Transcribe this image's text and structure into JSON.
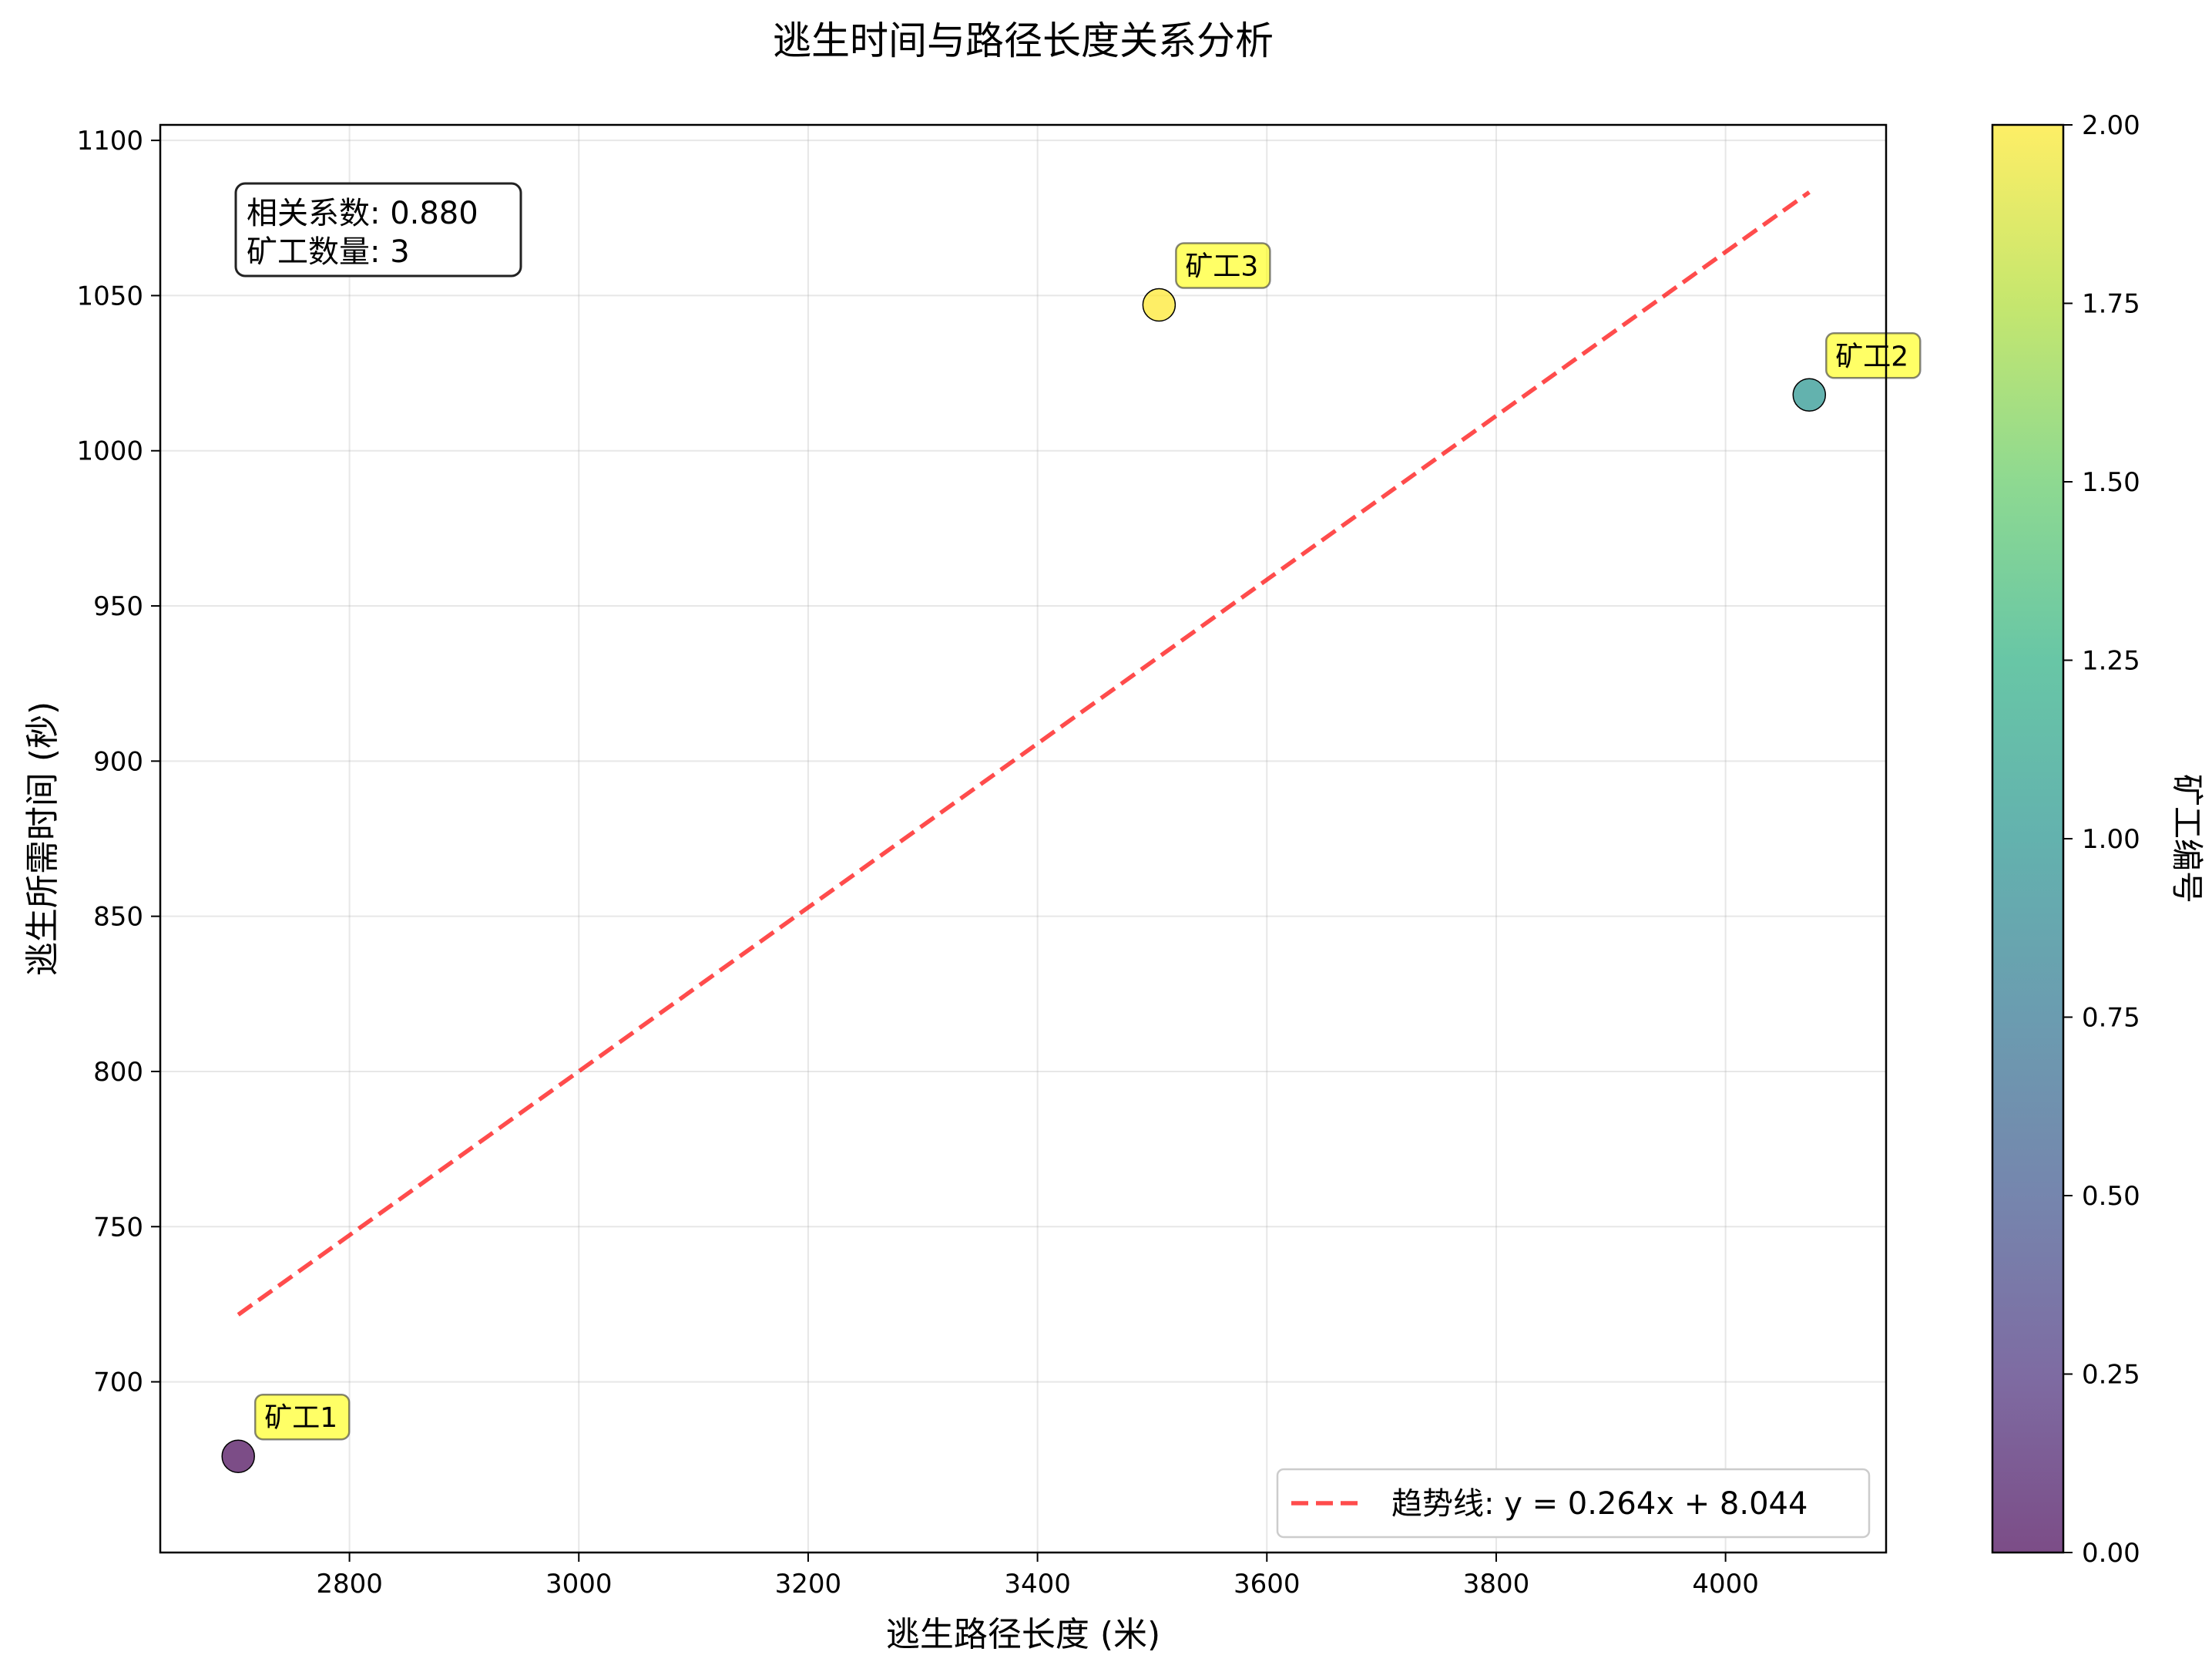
{
  "chart_data": {
    "type": "scatter",
    "title": "逃生时间与路径长度关系分析",
    "xlabel": "逃生路径长度 (米)",
    "ylabel": "逃生所需时间 (秒)",
    "xlim": [
      2635,
      4140
    ],
    "ylim": [
      645,
      1105
    ],
    "xticks": [
      2800,
      3000,
      3200,
      3400,
      3600,
      3800,
      4000
    ],
    "yticks": [
      700,
      750,
      800,
      850,
      900,
      950,
      1000,
      1050,
      1100
    ],
    "grid": true,
    "points": [
      {
        "label": "矿工1",
        "x": 2703,
        "y": 676,
        "color_value": 0,
        "color": "#440154"
      },
      {
        "label": "矿工2",
        "x": 4073,
        "y": 1018,
        "color_value": 1,
        "color": "#21918c"
      },
      {
        "label": "矿工3",
        "x": 3506,
        "y": 1047,
        "color_value": 2,
        "color": "#fde725"
      }
    ],
    "trendline": {
      "label": "趋势线: y = 0.264x + 8.044",
      "slope": 0.264,
      "intercept": 8.044,
      "x_range": [
        2703,
        4073
      ],
      "color": "#ff0000",
      "style": "dashed"
    },
    "legend": {
      "position": "bottom-right"
    },
    "stats_box": {
      "line1": "相关系数: 0.880",
      "line2": "矿工数量: 3"
    },
    "colorbar": {
      "label": "矿工编号",
      "colormap": "viridis",
      "range": [
        0,
        2
      ],
      "ticks": [
        "0.00",
        "0.25",
        "0.50",
        "0.75",
        "1.00",
        "1.25",
        "1.50",
        "1.75",
        "2.00"
      ]
    },
    "label_box_color": "#ffff00"
  }
}
